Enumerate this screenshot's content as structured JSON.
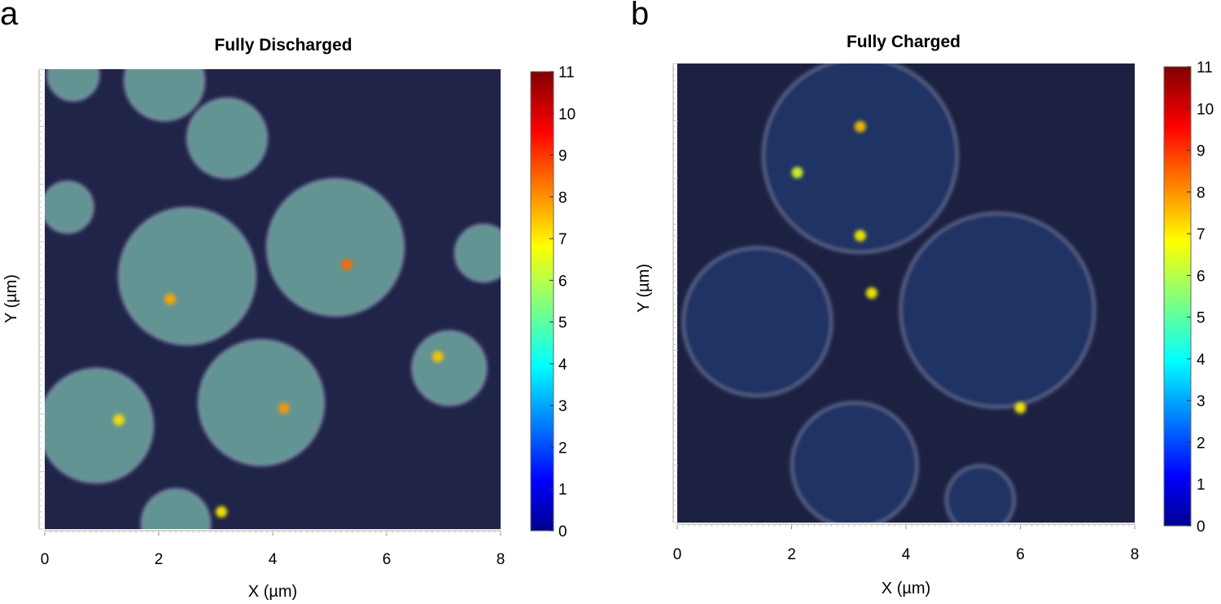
{
  "chart_data": [
    {
      "type": "heatmap",
      "panel_label": "a",
      "title": "Fully Discharged",
      "xlabel": "X (µm)",
      "ylabel": "Y (µm)",
      "xlim": [
        0,
        8
      ],
      "ylim": [
        0,
        8
      ],
      "x_ticks": [
        "0",
        "2",
        "4",
        "6",
        "8"
      ],
      "colorbar": {
        "min": 0,
        "max": 11,
        "ticks": [
          "0",
          "1",
          "2",
          "3",
          "4",
          "5",
          "6",
          "7",
          "8",
          "9",
          "10",
          "11"
        ],
        "colormap": "jet"
      },
      "background_color": "#1f2448",
      "particle_color": "#6fa8a0",
      "particles": [
        {
          "x": 0.5,
          "y": 7.9,
          "r": 0.45,
          "level": 4.5
        },
        {
          "x": 2.1,
          "y": 7.8,
          "r": 0.7,
          "level": 4.8
        },
        {
          "x": 3.2,
          "y": 6.8,
          "r": 0.7,
          "level": 4.6
        },
        {
          "x": 0.4,
          "y": 5.6,
          "r": 0.45,
          "level": 4.2
        },
        {
          "x": 2.5,
          "y": 4.4,
          "r": 1.2,
          "level": 5.0
        },
        {
          "x": 5.1,
          "y": 4.9,
          "r": 1.2,
          "level": 5.3
        },
        {
          "x": 7.7,
          "y": 4.8,
          "r": 0.5,
          "level": 5.6
        },
        {
          "x": 3.8,
          "y": 2.2,
          "r": 1.1,
          "level": 5.0
        },
        {
          "x": 0.9,
          "y": 1.8,
          "r": 1.0,
          "level": 4.9
        },
        {
          "x": 7.1,
          "y": 2.8,
          "r": 0.65,
          "level": 5.4
        },
        {
          "x": 2.3,
          "y": 0.1,
          "r": 0.6,
          "level": 4.5
        }
      ],
      "hotspots": [
        {
          "x": 5.3,
          "y": 4.6,
          "level": 8.5
        },
        {
          "x": 4.2,
          "y": 2.1,
          "level": 8.0
        },
        {
          "x": 2.2,
          "y": 4.0,
          "level": 7.8
        },
        {
          "x": 6.9,
          "y": 3.0,
          "level": 7.5
        },
        {
          "x": 1.3,
          "y": 1.9,
          "level": 7.2
        },
        {
          "x": 3.1,
          "y": 0.3,
          "level": 7.0
        }
      ]
    },
    {
      "type": "heatmap",
      "panel_label": "b",
      "title": "Fully Charged",
      "xlabel": "X (µm)",
      "ylabel": "Y (µm)",
      "xlim": [
        0,
        8
      ],
      "ylim": [
        0,
        8
      ],
      "x_ticks": [
        "0",
        "2",
        "4",
        "6",
        "8"
      ],
      "colorbar": {
        "min": 0,
        "max": 11,
        "ticks": [
          "0",
          "1",
          "2",
          "3",
          "4",
          "5",
          "6",
          "7",
          "8",
          "9",
          "10",
          "11"
        ],
        "colormap": "jet"
      },
      "background_color": "#1c2142",
      "particle_color": "#21356a",
      "particles": [
        {
          "x": 3.2,
          "y": 6.4,
          "r": 1.7,
          "level": 1.5
        },
        {
          "x": 1.4,
          "y": 3.5,
          "r": 1.3,
          "level": 1.3
        },
        {
          "x": 5.6,
          "y": 3.7,
          "r": 1.7,
          "level": 1.4
        },
        {
          "x": 3.1,
          "y": 1.0,
          "r": 1.1,
          "level": 1.2
        },
        {
          "x": 5.3,
          "y": 0.4,
          "r": 0.6,
          "level": 1.1
        }
      ],
      "hotspots": [
        {
          "x": 3.2,
          "y": 6.9,
          "level": 7.5
        },
        {
          "x": 3.2,
          "y": 5.0,
          "level": 7.0
        },
        {
          "x": 3.4,
          "y": 4.0,
          "level": 7.0
        },
        {
          "x": 2.1,
          "y": 6.1,
          "level": 6.5
        },
        {
          "x": 6.0,
          "y": 2.0,
          "level": 7.0
        }
      ]
    }
  ]
}
